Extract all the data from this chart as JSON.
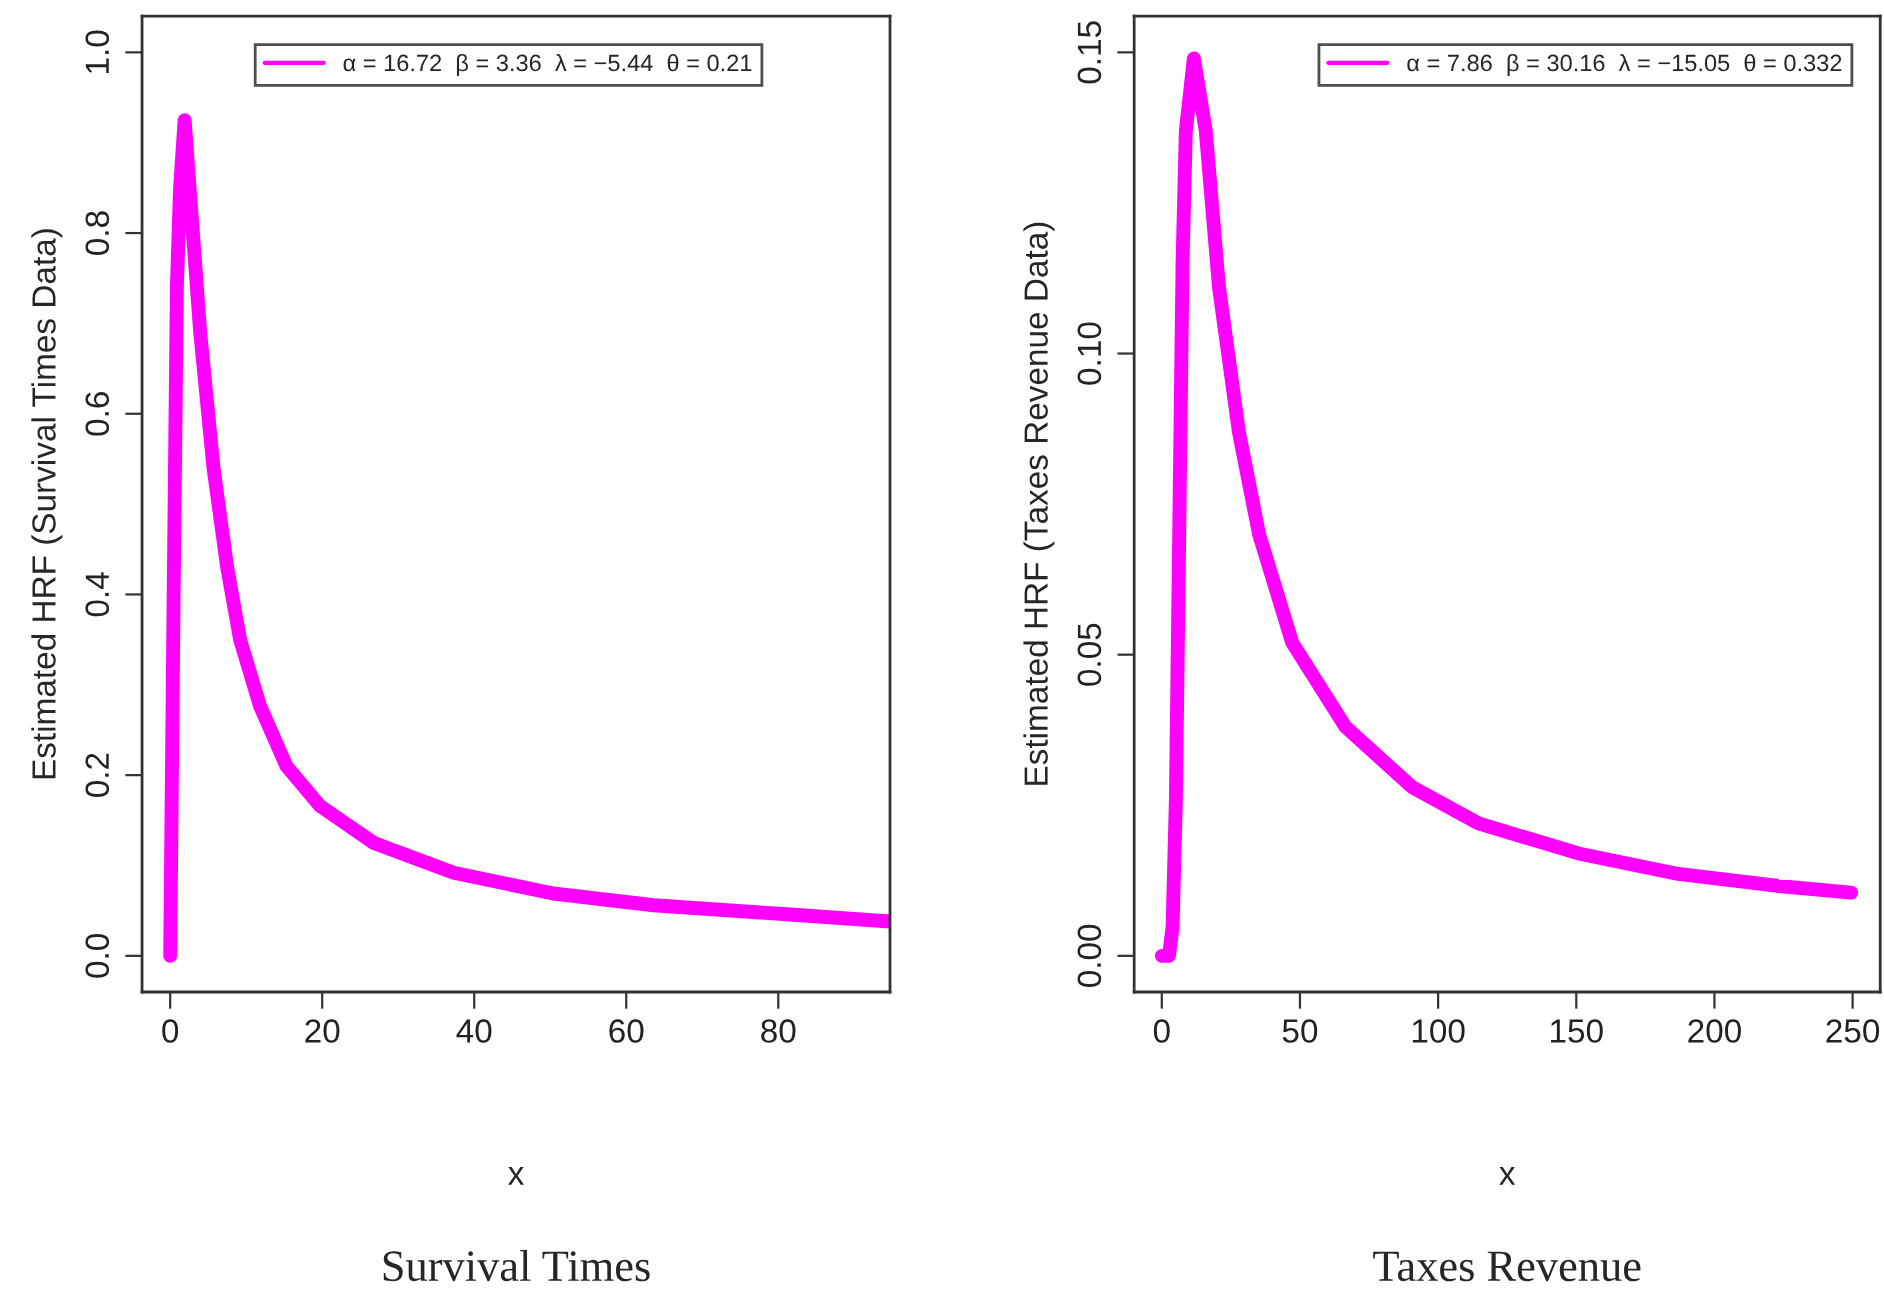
{
  "chart_data": [
    {
      "type": "line",
      "xlabel": "x",
      "ylabel": "Estimated HRF (Survival Times Data)",
      "annotations": [
        "Survival Times"
      ],
      "legend": "top",
      "grid": false,
      "marker": "none",
      "line_style": "solid",
      "xlim": [
        -3.7,
        94.7
      ],
      "xticks": [
        0,
        20,
        40,
        60,
        80
      ],
      "ylim": [
        -0.04,
        1.04
      ],
      "yticks": [
        {
          "value": 0,
          "label": "0.0"
        },
        {
          "value": 0.2,
          "label": "0.2"
        },
        {
          "value": 0.4,
          "label": "0.4"
        },
        {
          "value": 0.6,
          "label": "0.6"
        },
        {
          "value": 0.8,
          "label": "0.8"
        },
        {
          "value": 1,
          "label": "1.0"
        }
      ],
      "series": [
        {
          "name": "α = 16.72  β = 3.36  λ = −5.44  θ = 0.21",
          "color": "#ff00ff",
          "x": [
            0,
            0.45,
            0.88,
            1.3,
            1.9,
            3.95,
            5.7,
            7.5,
            9.2,
            11.8,
            15.3,
            19.7,
            26.8,
            37.3,
            50.4,
            63.6,
            81.1,
            94.7
          ],
          "values": [
            0,
            0.395,
            0.74,
            0.85,
            0.925,
            0.69,
            0.54,
            0.43,
            0.35,
            0.277,
            0.21,
            0.166,
            0.125,
            0.092,
            0.069,
            0.056,
            0.046,
            0.038
          ]
        }
      ]
    },
    {
      "type": "line",
      "xlabel": "x",
      "ylabel": "Estimated HRF (Taxes Revenue Data)",
      "annotations": [
        "Taxes Revenue"
      ],
      "legend": "top right",
      "grid": false,
      "marker": "none",
      "line_style": "solid",
      "xlim": [
        -10,
        260
      ],
      "xticks": [
        0,
        50,
        100,
        150,
        200,
        250
      ],
      "ylim": [
        -0.006,
        0.156
      ],
      "yticks": [
        {
          "value": 0,
          "label": "0.00"
        },
        {
          "value": 0.05,
          "label": "0.05"
        },
        {
          "value": 0.1,
          "label": "0.10"
        },
        {
          "value": 0.15,
          "label": "0.15"
        }
      ],
      "series": [
        {
          "name": "α = 7.86  β = 30.16  λ = −15.05  θ = 0.332",
          "color": "#ff00ff",
          "x": [
            0,
            2.6,
            3.9,
            5.1,
            6.3,
            7.5,
            8.7,
            11.6,
            15.9,
            20.7,
            27.9,
            35.2,
            47.2,
            66.5,
            90.6,
            114.6,
            150.8,
            186.9,
            223,
            249.5
          ],
          "values": [
            0,
            0,
            0.0048,
            0.026,
            0.07,
            0.115,
            0.137,
            0.149,
            0.137,
            0.111,
            0.087,
            0.07,
            0.052,
            0.038,
            0.028,
            0.022,
            0.017,
            0.0136,
            0.0116,
            0.0105
          ]
        }
      ]
    }
  ]
}
